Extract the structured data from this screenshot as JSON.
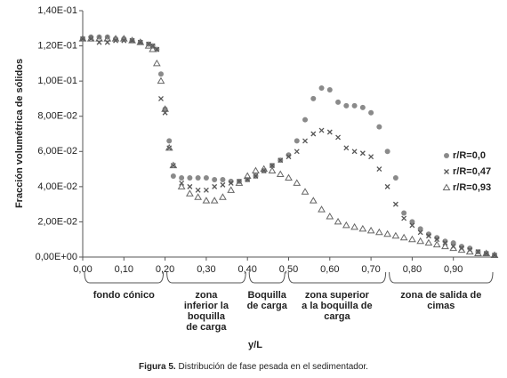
{
  "chart_data": {
    "type": "scatter",
    "y_label": "Fracción volumétrica de sólidos",
    "x_label": "y/L",
    "caption_label": "Figura 5.",
    "caption_text": " Distribución de fase pesada en el sedimentador.",
    "xlim": [
      0,
      1.0
    ],
    "ylim": [
      0,
      0.14
    ],
    "xticks": [
      {
        "value": 0,
        "label": "0,00"
      },
      {
        "value": 0.1,
        "label": "0,10"
      },
      {
        "value": 0.2,
        "label": "0,20"
      },
      {
        "value": 0.3,
        "label": "0,30"
      },
      {
        "value": 0.4,
        "label": "0,40"
      },
      {
        "value": 0.5,
        "label": "0,50"
      },
      {
        "value": 0.6,
        "label": "0,60"
      },
      {
        "value": 0.7,
        "label": "0,70"
      },
      {
        "value": 0.8,
        "label": "0,80"
      },
      {
        "value": 0.9,
        "label": "0,90"
      }
    ],
    "yticks": [
      {
        "value": 0,
        "label": "0,00E+00"
      },
      {
        "value": 0.02,
        "label": "2,00E-02"
      },
      {
        "value": 0.04,
        "label": "4,00E-02"
      },
      {
        "value": 0.06,
        "label": "6,00E-02"
      },
      {
        "value": 0.08,
        "label": "8,00E-02"
      },
      {
        "value": 0.1,
        "label": "1,00E-01"
      },
      {
        "value": 0.12,
        "label": "1,20E-01"
      },
      {
        "value": 0.14,
        "label": "1,40E-01"
      }
    ],
    "grid": false,
    "legend_position": "right",
    "x": [
      0,
      0.02,
      0.04,
      0.06,
      0.08,
      0.1,
      0.12,
      0.14,
      0.16,
      0.17,
      0.18,
      0.19,
      0.2,
      0.21,
      0.22,
      0.24,
      0.26,
      0.28,
      0.3,
      0.32,
      0.34,
      0.36,
      0.38,
      0.4,
      0.42,
      0.44,
      0.46,
      0.48,
      0.5,
      0.52,
      0.54,
      0.56,
      0.58,
      0.6,
      0.62,
      0.64,
      0.66,
      0.68,
      0.7,
      0.72,
      0.74,
      0.76,
      0.78,
      0.8,
      0.82,
      0.84,
      0.86,
      0.88,
      0.9,
      0.92,
      0.94,
      0.96,
      0.98,
      1.0
    ],
    "series": [
      {
        "name": "r/R=0,0",
        "color": "#8a8a8a",
        "marker": "circle",
        "values": [
          0.124,
          0.125,
          0.125,
          0.125,
          0.124,
          0.124,
          0.123,
          0.122,
          0.121,
          0.12,
          0.118,
          0.104,
          0.084,
          0.066,
          0.046,
          0.045,
          0.045,
          0.045,
          0.045,
          0.044,
          0.044,
          0.043,
          0.043,
          0.044,
          0.046,
          0.049,
          0.052,
          0.055,
          0.058,
          0.066,
          0.078,
          0.09,
          0.096,
          0.095,
          0.088,
          0.086,
          0.086,
          0.085,
          0.082,
          0.074,
          0.06,
          0.045,
          0.025,
          0.02,
          0.016,
          0.013,
          0.011,
          0.009,
          0.008,
          0.006,
          0.005,
          0.003,
          0.002,
          0.001
        ]
      },
      {
        "name": "r/R=0,47",
        "color": "#555555",
        "marker": "x",
        "values": [
          0.124,
          0.124,
          0.122,
          0.122,
          0.123,
          0.123,
          0.123,
          0.122,
          0.121,
          0.12,
          0.118,
          0.09,
          0.082,
          0.062,
          0.052,
          0.042,
          0.04,
          0.038,
          0.038,
          0.04,
          0.041,
          0.042,
          0.043,
          0.044,
          0.046,
          0.049,
          0.052,
          0.055,
          0.057,
          0.06,
          0.066,
          0.07,
          0.072,
          0.071,
          0.068,
          0.062,
          0.06,
          0.059,
          0.057,
          0.05,
          0.04,
          0.03,
          0.022,
          0.018,
          0.014,
          0.012,
          0.01,
          0.008,
          0.006,
          0.005,
          0.004,
          0.003,
          0.002,
          0.001
        ]
      },
      {
        "name": "r/R=0,93",
        "color": "#666666",
        "marker": "triangle",
        "values": [
          0.124,
          0.124,
          0.124,
          0.124,
          0.124,
          0.124,
          0.123,
          0.122,
          0.12,
          0.118,
          0.11,
          0.1,
          0.084,
          0.062,
          0.052,
          0.04,
          0.036,
          0.034,
          0.032,
          0.032,
          0.034,
          0.038,
          0.042,
          0.046,
          0.049,
          0.05,
          0.049,
          0.047,
          0.045,
          0.042,
          0.037,
          0.032,
          0.027,
          0.023,
          0.02,
          0.018,
          0.017,
          0.016,
          0.015,
          0.014,
          0.013,
          0.012,
          0.011,
          0.01,
          0.009,
          0.008,
          0.007,
          0.006,
          0.005,
          0.004,
          0.003,
          0.002,
          0.002,
          0.001
        ]
      }
    ],
    "zones": [
      {
        "lines": [
          "fondo cónico"
        ],
        "from": 0,
        "to": 0.2
      },
      {
        "lines": [
          "zona",
          "inferior la",
          "boquilla",
          "de carga"
        ],
        "from": 0.2,
        "to": 0.4
      },
      {
        "lines": [
          "Boquilla",
          "de carga"
        ],
        "from": 0.4,
        "to": 0.495
      },
      {
        "lines": [
          "zona superior",
          "a la boquilla de",
          "carga"
        ],
        "from": 0.495,
        "to": 0.74
      },
      {
        "lines": [
          "zona de salida de",
          "cimas"
        ],
        "from": 0.74,
        "to": 1.0
      }
    ]
  }
}
